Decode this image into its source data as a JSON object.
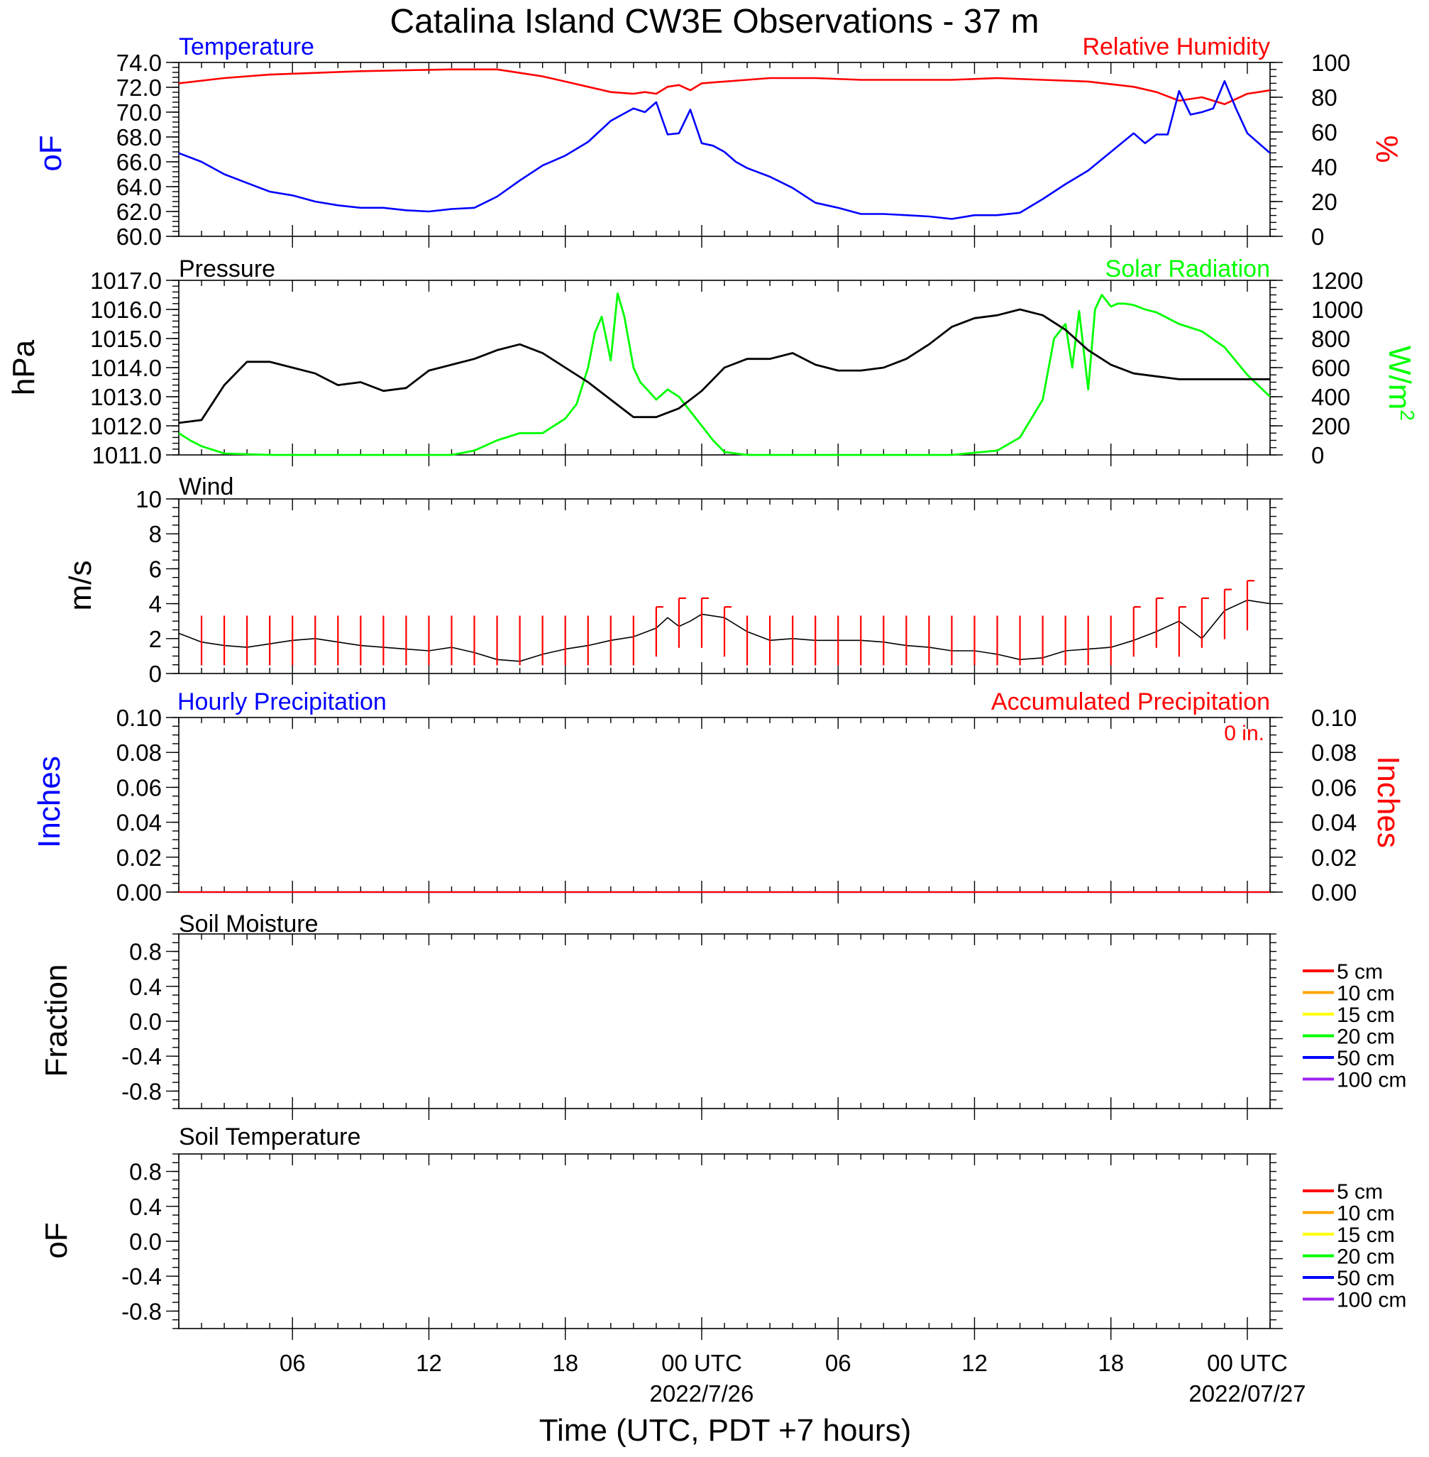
{
  "title": "Catalina Island CW3E Observations - 37 m",
  "xlabel": "Time (UTC, PDT +7 hours)",
  "x_tick_labels": [
    "06",
    "12",
    "18",
    "00 UTC",
    "06",
    "12",
    "18",
    "00 UTC"
  ],
  "x_date_labels": [
    "2022/7/26",
    "2022/07/27"
  ],
  "colors": {
    "temperature": "#0000ff",
    "humidity": "#ff0000",
    "pressure": "#000000",
    "solar": "#00ff00",
    "wind_speed": "#000000",
    "wind_barb": "#ff0000",
    "hourly_precip": "#0000ff",
    "accum_precip": "#ff0000"
  },
  "panels": {
    "temp": {
      "title_left": "Temperature",
      "title_right": "Relative Humidity",
      "ylabel_left": "oF",
      "ylabel_right": "%",
      "yticks_left": [
        "60.0",
        "62.0",
        "64.0",
        "66.0",
        "68.0",
        "70.0",
        "72.0",
        "74.0"
      ],
      "yticks_right": [
        "0",
        "20",
        "40",
        "60",
        "80",
        "100"
      ]
    },
    "pressure": {
      "title_left": "Pressure",
      "title_right": "Solar Radiation",
      "ylabel_left": "hPa",
      "ylabel_right": "W/m",
      "ylabel_right_sup": "2",
      "yticks_left": [
        "1011.0",
        "1012.0",
        "1013.0",
        "1014.0",
        "1015.0",
        "1016.0",
        "1017.0"
      ],
      "yticks_right": [
        "0",
        "200",
        "400",
        "600",
        "800",
        "1000",
        "1200"
      ]
    },
    "wind": {
      "title_left": "Wind",
      "ylabel_left": "m/s",
      "yticks_left": [
        "0",
        "2",
        "4",
        "6",
        "8",
        "10"
      ]
    },
    "precip": {
      "title_left": "Hourly Precipitation",
      "title_right": "Accumulated Precipitation",
      "accum_total": "0 in.",
      "ylabel_left": "Inches",
      "ylabel_right": "Inches",
      "yticks_left": [
        "0.00",
        "0.02",
        "0.04",
        "0.06",
        "0.08",
        "0.10"
      ],
      "yticks_right": [
        "0.00",
        "0.02",
        "0.04",
        "0.06",
        "0.08",
        "0.10"
      ]
    },
    "soil_moisture": {
      "title_left": "Soil Moisture",
      "ylabel_left": "Fraction",
      "yticks_left": [
        "-0.8",
        "-0.4",
        "0.0",
        "0.4",
        "0.8"
      ],
      "legend": [
        "5 cm",
        "10 cm",
        "15 cm",
        "20 cm",
        "50 cm",
        "100 cm"
      ]
    },
    "soil_temp": {
      "title_left": "Soil Temperature",
      "ylabel_left": "oF",
      "yticks_left": [
        "-0.8",
        "-0.4",
        "0.0",
        "0.4",
        "0.8"
      ],
      "legend": [
        "5 cm",
        "10 cm",
        "15 cm",
        "20 cm",
        "50 cm",
        "100 cm"
      ]
    }
  },
  "soil_legend_colors": [
    "#ff0000",
    "#ffa500",
    "#ffff00",
    "#00ff00",
    "#0000ff",
    "#a020f0"
  ],
  "chart_data": [
    {
      "type": "line",
      "x_units": "hours since 2022-07-25 01 UTC",
      "xlim": [
        0,
        48
      ],
      "series": [
        {
          "name": "Temperature",
          "axis": "left",
          "units": "oF",
          "x": [
            0,
            1,
            2,
            3,
            4,
            5,
            6,
            7,
            8,
            9,
            10,
            11,
            12,
            13,
            14,
            15,
            16,
            17,
            18,
            19,
            19.5,
            20,
            20.5,
            21,
            21.5,
            22,
            22.5,
            23,
            23.5,
            24,
            24.5,
            25,
            26,
            27,
            28,
            29,
            30,
            31,
            32,
            33,
            34,
            35,
            36,
            37,
            38,
            39,
            40,
            41,
            42,
            42.5,
            43,
            43.5,
            44,
            44.5,
            45,
            45.5,
            46,
            46.5,
            47,
            48
          ],
          "values": [
            66.7,
            66.0,
            65.0,
            64.3,
            63.6,
            63.3,
            62.8,
            62.5,
            62.3,
            62.3,
            62.1,
            62.0,
            62.2,
            62.3,
            63.2,
            64.5,
            65.7,
            66.5,
            67.6,
            69.3,
            69.8,
            70.3,
            70.0,
            70.8,
            68.2,
            68.3,
            70.2,
            67.5,
            67.3,
            66.8,
            66.0,
            65.5,
            64.8,
            63.9,
            62.7,
            62.3,
            61.8,
            61.8,
            61.7,
            61.6,
            61.4,
            61.7,
            61.7,
            61.9,
            63.0,
            64.2,
            65.3,
            66.8,
            68.3,
            67.5,
            68.2,
            68.2,
            71.7,
            69.8,
            70.0,
            70.3,
            72.5,
            70.3,
            68.3,
            66.7
          ]
        },
        {
          "name": "Relative Humidity",
          "axis": "right",
          "units": "%",
          "x": [
            0,
            2,
            4,
            6,
            8,
            10,
            12,
            14,
            15,
            16,
            17,
            18,
            19,
            20,
            20.5,
            21,
            21.5,
            22,
            22.5,
            23,
            24,
            25,
            26,
            28,
            30,
            32,
            34,
            36,
            38,
            40,
            42,
            43,
            44,
            45,
            46,
            47,
            48
          ],
          "values": [
            88,
            91,
            93,
            94,
            95,
            95.5,
            96,
            96,
            94,
            92,
            89,
            86,
            83,
            82,
            83,
            82,
            86,
            87,
            84,
            88,
            89,
            90,
            91,
            91,
            90,
            90,
            90,
            91,
            90,
            89,
            86,
            83,
            78,
            80,
            76,
            82,
            84
          ]
        }
      ],
      "ylim_left": [
        60,
        74
      ],
      "ylim_right": [
        0,
        100
      ],
      "grid": false
    },
    {
      "type": "line",
      "x_units": "hours since 2022-07-25 01 UTC",
      "xlim": [
        0,
        48
      ],
      "series": [
        {
          "name": "Pressure",
          "axis": "left",
          "units": "hPa",
          "x": [
            0,
            1,
            2,
            3,
            4,
            5,
            6,
            7,
            8,
            9,
            10,
            11,
            12,
            13,
            14,
            15,
            16,
            17,
            18,
            19,
            20,
            21,
            22,
            23,
            24,
            25,
            26,
            27,
            28,
            29,
            30,
            31,
            32,
            33,
            34,
            35,
            36,
            37,
            38,
            39,
            40,
            41,
            42,
            43,
            44,
            45,
            46,
            47,
            48
          ],
          "values": [
            1012.1,
            1012.2,
            1013.4,
            1014.2,
            1014.2,
            1014.0,
            1013.8,
            1013.4,
            1013.5,
            1013.2,
            1013.3,
            1013.9,
            1014.1,
            1014.3,
            1014.6,
            1014.8,
            1014.5,
            1014.0,
            1013.5,
            1012.9,
            1012.3,
            1012.3,
            1012.6,
            1013.2,
            1014.0,
            1014.3,
            1014.3,
            1014.5,
            1014.1,
            1013.9,
            1013.9,
            1014.0,
            1014.3,
            1014.8,
            1015.4,
            1015.7,
            1015.8,
            1016.0,
            1015.8,
            1015.3,
            1014.6,
            1014.1,
            1013.8,
            1013.7,
            1013.6,
            1013.6,
            1013.6,
            1013.6,
            1013.6
          ]
        },
        {
          "name": "Solar Radiation",
          "axis": "right",
          "units": "W/m2",
          "x": [
            0,
            0.5,
            1,
            2,
            4,
            6,
            8,
            10,
            12,
            13,
            14,
            15,
            16,
            17,
            17.5,
            18,
            18.3,
            18.6,
            19,
            19.3,
            19.6,
            20,
            20.3,
            20.6,
            21,
            21.5,
            22,
            22.5,
            23,
            23.5,
            24,
            25,
            26,
            27,
            28,
            30,
            32,
            34,
            36,
            37,
            38,
            38.5,
            39,
            39.3,
            39.6,
            40,
            40.3,
            40.6,
            41,
            41.3,
            41.6,
            42,
            42.5,
            43,
            44,
            45,
            46,
            47,
            48
          ],
          "values": [
            150,
            100,
            60,
            10,
            0,
            0,
            0,
            0,
            0,
            30,
            100,
            150,
            150,
            250,
            350,
            600,
            840,
            950,
            650,
            1110,
            950,
            600,
            500,
            450,
            380,
            450,
            400,
            300,
            200,
            100,
            20,
            0,
            0,
            0,
            0,
            0,
            0,
            0,
            30,
            120,
            380,
            800,
            900,
            600,
            990,
            450,
            1000,
            1100,
            1020,
            1040,
            1040,
            1030,
            1000,
            980,
            900,
            850,
            740,
            550,
            400
          ]
        }
      ],
      "ylim_left": [
        1011,
        1017
      ],
      "ylim_right": [
        0,
        1200
      ],
      "grid": false
    },
    {
      "type": "line",
      "x_units": "hours since 2022-07-25 01 UTC",
      "xlim": [
        0,
        48
      ],
      "series": [
        {
          "name": "Wind speed",
          "units": "m/s",
          "x": [
            0,
            1,
            2,
            3,
            4,
            5,
            6,
            7,
            8,
            9,
            10,
            11,
            12,
            13,
            14,
            15,
            16,
            17,
            18,
            19,
            20,
            21,
            21.5,
            22,
            22.5,
            23,
            24,
            25,
            26,
            27,
            28,
            29,
            30,
            31,
            32,
            33,
            34,
            35,
            36,
            37,
            38,
            39,
            40,
            41,
            42,
            43,
            44,
            45,
            46,
            47,
            48
          ],
          "values": [
            2.3,
            1.8,
            1.6,
            1.5,
            1.7,
            1.9,
            2.0,
            1.8,
            1.6,
            1.5,
            1.4,
            1.3,
            1.5,
            1.2,
            0.8,
            0.7,
            1.1,
            1.4,
            1.6,
            1.9,
            2.1,
            2.6,
            3.2,
            2.7,
            3.0,
            3.4,
            3.2,
            2.4,
            1.9,
            2.0,
            1.9,
            1.9,
            1.9,
            1.8,
            1.6,
            1.5,
            1.3,
            1.3,
            1.1,
            0.8,
            0.9,
            1.3,
            1.4,
            1.5,
            1.9,
            2.4,
            3.0,
            2.0,
            3.6,
            4.2,
            4.0
          ]
        },
        {
          "name": "Wind barbs",
          "units": "m/s",
          "x": [
            1,
            2,
            3,
            4,
            5,
            6,
            7,
            8,
            9,
            10,
            11,
            12,
            13,
            14,
            15,
            16,
            17,
            18,
            19,
            20,
            21,
            22,
            23,
            24,
            25,
            26,
            27,
            28,
            29,
            30,
            31,
            32,
            33,
            34,
            35,
            36,
            37,
            38,
            39,
            40,
            41,
            42,
            43,
            44,
            45,
            46,
            47
          ],
          "values": [
            2.5,
            2.5,
            2.5,
            2.5,
            2.5,
            2.5,
            2.5,
            2.5,
            2.5,
            2.5,
            2.5,
            2.5,
            2.5,
            2.5,
            2.5,
            2.5,
            2.5,
            2.5,
            2.5,
            2.5,
            3.0,
            3.5,
            3.5,
            3.0,
            2.5,
            2.5,
            2.5,
            2.5,
            2.5,
            2.5,
            2.5,
            2.5,
            2.5,
            2.5,
            2.5,
            2.5,
            2.5,
            2.5,
            2.5,
            2.5,
            2.5,
            3.0,
            3.5,
            3.0,
            3.5,
            4.0,
            4.5
          ]
        }
      ],
      "ylim": [
        0,
        10
      ],
      "grid": false
    },
    {
      "type": "line",
      "x_units": "hours since 2022-07-25 01 UTC",
      "xlim": [
        0,
        48
      ],
      "series": [
        {
          "name": "Hourly Precipitation",
          "axis": "left",
          "x": [
            0,
            48
          ],
          "values": [
            0,
            0
          ]
        },
        {
          "name": "Accumulated Precipitation",
          "axis": "right",
          "x": [
            0,
            48
          ],
          "values": [
            0,
            0
          ]
        }
      ],
      "ylim_left": [
        0,
        0.1
      ],
      "ylim_right": [
        0,
        0.1
      ],
      "grid": false
    },
    {
      "type": "line",
      "series": [],
      "ylim": [
        -1,
        1
      ],
      "legend_position": "right"
    },
    {
      "type": "line",
      "series": [],
      "ylim": [
        -1,
        1
      ],
      "legend_position": "right"
    }
  ]
}
